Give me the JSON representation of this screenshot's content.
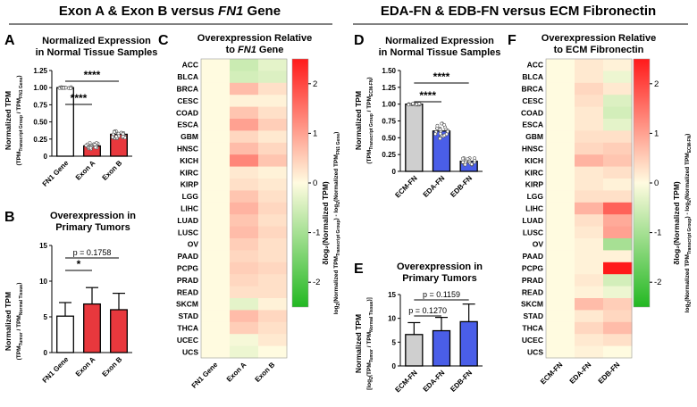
{
  "headers": {
    "left": {
      "pre": "Exon A & Exon B versus ",
      "gene": "FN1",
      "post": " Gene"
    },
    "right": "EDA-FN & EDB-FN versus ECM Fibronectin"
  },
  "panels": {
    "A": {
      "letter": "A",
      "title": [
        "Normalized Expression",
        "in Normal Tissue Samples"
      ],
      "ylabel_main": "Normalized TPM",
      "ylabel_sub": "(TPMₒ₂ / TPMₓ)"
    },
    "B": {
      "letter": "B",
      "title": [
        "Overexpression in",
        "Primary Tumors"
      ],
      "ylabel_main": "Normalized TPM",
      "ylabel_sub": "(TPMTumor / TPMNormal Tissue)"
    },
    "C": {
      "letter": "C",
      "title_line1": "Overexpression Relative",
      "title_line2_pre": "to ",
      "title_line2_gene": "FN1",
      "title_line2_post": " Gene"
    },
    "D": {
      "letter": "D",
      "title": [
        "Normalized Expression",
        "in Normal Tissue Samples"
      ],
      "ylabel_main": "Normalized TPM"
    },
    "E": {
      "letter": "E",
      "title": [
        "Overexpression in",
        "Primary Tumors"
      ],
      "ylabel_main": "Normalized TPM"
    },
    "F": {
      "letter": "F",
      "title": [
        "Overexpression Relative",
        "to ECM Fibronectin"
      ]
    }
  },
  "colorbar": {
    "label_main": "δlog₂(Normalized TPM)",
    "label_sub_C": "log₂(Normalized TPMTranscript Group) - log₂(Normalized TPMFN1 Gene)",
    "label_sub_F": "log₂(Normalized TPMTranscript Group) - log₂(Normalized TPMECM-FN)",
    "ticks": [
      "2",
      "1",
      "0",
      "-1",
      "-2"
    ],
    "colors": {
      "high": "#ff1a1a",
      "mid": "#fffbe0",
      "low": "#22b822"
    }
  },
  "chart_data": [
    {
      "panel": "A",
      "type": "bar",
      "categories": [
        "FN1 Gene",
        "Exon A",
        "Exon B"
      ],
      "values": [
        1.0,
        0.15,
        0.32
      ],
      "colors": [
        "#ffffff",
        "#e8383d",
        "#e8383d"
      ],
      "ylim": [
        0,
        1.25
      ],
      "yticks": [
        "0",
        "0.25",
        "0.50",
        "0.75",
        "1.00",
        "1.25"
      ],
      "ylabel": "Normalized TPM",
      "significance": [
        {
          "from": 0,
          "to": 1,
          "label": "****"
        },
        {
          "from": 0,
          "to": 2,
          "label": "****"
        }
      ]
    },
    {
      "panel": "B",
      "type": "bar",
      "categories": [
        "FN1 Gene",
        "Exon A",
        "Exon B"
      ],
      "values": [
        5.1,
        6.8,
        6.0
      ],
      "errors": [
        1.9,
        2.3,
        2.3
      ],
      "colors": [
        "#ffffff",
        "#e8383d",
        "#e8383d"
      ],
      "ylim": [
        0,
        15
      ],
      "yticks": [
        "0",
        "5",
        "10",
        "15"
      ],
      "ylabel": "Normalized TPM",
      "significance": [
        {
          "from": 0,
          "to": 1,
          "label": "*"
        },
        {
          "from": 0,
          "to": 2,
          "label": "p = 0.1758"
        }
      ]
    },
    {
      "panel": "C",
      "type": "heatmap",
      "rows": [
        "ACC",
        "BLCA",
        "BRCA",
        "CESC",
        "COAD",
        "ESCA",
        "GBM",
        "HNSC",
        "KICH",
        "KIRC",
        "KIRP",
        "LGG",
        "LIHC",
        "LUAD",
        "LUSC",
        "OV",
        "PAAD",
        "PCPG",
        "PRAD",
        "READ",
        "SKCM",
        "STAD",
        "THCA",
        "UCEC",
        "UCS"
      ],
      "columns": [
        "FN1 Gene",
        "Exon A",
        "Exon B"
      ],
      "values": [
        [
          0,
          -0.6,
          -0.3
        ],
        [
          0,
          -0.5,
          -0.4
        ],
        [
          0,
          0.7,
          0.3
        ],
        [
          0,
          0.1,
          0.1
        ],
        [
          0,
          0.6,
          0.3
        ],
        [
          0,
          1.0,
          0.5
        ],
        [
          0,
          0.4,
          0.2
        ],
        [
          0,
          0.7,
          0.4
        ],
        [
          0,
          1.3,
          0.6
        ],
        [
          0,
          0.2,
          0.1
        ],
        [
          0,
          0.3,
          0.2
        ],
        [
          0,
          0.6,
          0.3
        ],
        [
          0,
          0.8,
          0.4
        ],
        [
          0,
          0.6,
          0.3
        ],
        [
          0,
          0.7,
          0.4
        ],
        [
          0,
          0.5,
          0.3
        ],
        [
          0,
          0.4,
          0.3
        ],
        [
          0,
          0.5,
          0.4
        ],
        [
          0,
          0.4,
          0.3
        ],
        [
          0,
          0.3,
          0.3
        ],
        [
          0,
          -0.3,
          0.1
        ],
        [
          0,
          0.7,
          0.4
        ],
        [
          0,
          0.5,
          0.3
        ],
        [
          0,
          -0.1,
          0.2
        ],
        [
          0,
          -0.2,
          0.0
        ]
      ],
      "colorscale": [
        -2.5,
        2.5
      ]
    },
    {
      "panel": "D",
      "type": "bar",
      "categories": [
        "ECM-FN",
        "EDA-FN",
        "EDB-FN"
      ],
      "values": [
        1.0,
        0.6,
        0.15
      ],
      "colors": [
        "#cfcfcf",
        "#4a5ee8",
        "#4a5ee8"
      ],
      "ylim": [
        0,
        1.5
      ],
      "yticks": [
        "0",
        "0.25",
        "0.50",
        "0.75",
        "1.00",
        "1.25",
        "1.50"
      ],
      "ylabel": "Normalized TPM",
      "significance": [
        {
          "from": 0,
          "to": 1,
          "label": "****"
        },
        {
          "from": 0,
          "to": 2,
          "label": "****"
        }
      ]
    },
    {
      "panel": "E",
      "type": "bar",
      "categories": [
        "ECM-FN",
        "EDA-FN",
        "EDB-FN"
      ],
      "values": [
        6.6,
        7.4,
        9.3
      ],
      "errors": [
        2.5,
        2.8,
        3.7
      ],
      "colors": [
        "#cfcfcf",
        "#4a5ee8",
        "#4a5ee8"
      ],
      "ylim": [
        0,
        15
      ],
      "yticks": [
        "0",
        "5",
        "10",
        "15"
      ],
      "ylabel": "Normalized TPM",
      "significance": [
        {
          "from": 0,
          "to": 1,
          "label": "p = 0.1270"
        },
        {
          "from": 0,
          "to": 2,
          "label": "p = 0.1159"
        }
      ]
    },
    {
      "panel": "F",
      "type": "heatmap",
      "rows": [
        "ACC",
        "BLCA",
        "BRCA",
        "CESC",
        "COAD",
        "ESCA",
        "GBM",
        "HNSC",
        "KICH",
        "KIRC",
        "KIRP",
        "LGG",
        "LIHC",
        "LUAD",
        "LUSC",
        "OV",
        "PAAD",
        "PCPG",
        "PRAD",
        "READ",
        "SKCM",
        "STAD",
        "THCA",
        "UCEC",
        "UCS"
      ],
      "columns": [
        "ECM-FN",
        "EDA-FN",
        "EDB-FN"
      ],
      "values": [
        [
          0,
          0.2,
          0.1
        ],
        [
          0,
          0.2,
          -0.2
        ],
        [
          0,
          0.4,
          0.2
        ],
        [
          0,
          0.3,
          -0.4
        ],
        [
          0,
          0.2,
          -0.5
        ],
        [
          0,
          0.2,
          -0.3
        ],
        [
          0,
          0.3,
          0.3
        ],
        [
          0,
          0.4,
          0.5
        ],
        [
          0,
          0.8,
          0.6
        ],
        [
          0,
          0.2,
          0.3
        ],
        [
          0,
          0.2,
          0.1
        ],
        [
          0,
          0.3,
          0.3
        ],
        [
          0,
          0.8,
          1.7
        ],
        [
          0,
          0.3,
          0.9
        ],
        [
          0,
          0.2,
          1.0
        ],
        [
          0,
          0.1,
          -1.0
        ],
        [
          0,
          0.1,
          0.1
        ],
        [
          0,
          0.1,
          2.5
        ],
        [
          0,
          0.2,
          -0.5
        ],
        [
          0,
          0.1,
          -0.2
        ],
        [
          0,
          0.7,
          0.5
        ],
        [
          0,
          0.2,
          0.4
        ],
        [
          0,
          0.4,
          0.7
        ],
        [
          0,
          0.2,
          0.3
        ],
        [
          0,
          0.1,
          0.0
        ]
      ],
      "colorscale": [
        -2.5,
        2.5
      ]
    }
  ]
}
